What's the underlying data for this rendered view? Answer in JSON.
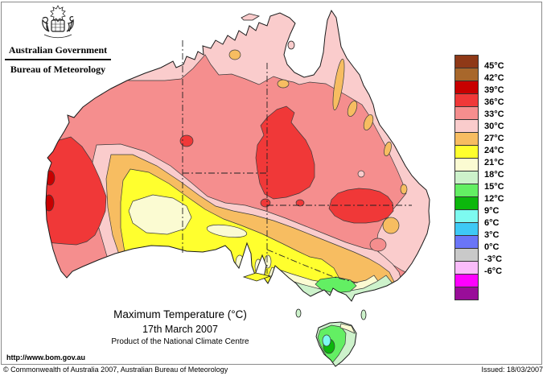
{
  "header": {
    "government": "Australian Government",
    "bureau": "Bureau of Meteorology"
  },
  "title_block": {
    "title": "Maximum Temperature (°C)",
    "date": "17th March 2007",
    "product": "Product of the National Climate Centre"
  },
  "url": "http://www.bom.gov.au",
  "footer": {
    "copyright": "© Commonwealth of Australia 2007, Australian Bureau of Meteorology",
    "issued": "Issued: 18/03/2007"
  },
  "palette": {
    "t45_up": "#8F3917",
    "t42_45": "#A8672B",
    "t39_42": "#C80000",
    "t36_39": "#F03838",
    "t33_36": "#F58E8E",
    "t30_33": "#FACCCC",
    "t27_30": "#F7BD61",
    "t24_27": "#FFFF2E",
    "t21_24": "#FBFBD2",
    "t18_21": "#CDF2CB",
    "t15_18": "#63EF63",
    "t12_15": "#0CB70C",
    "t9_12": "#7DFAF0",
    "t6_9": "#3EC9F5",
    "t3_6": "#6A75F7",
    "t0_3": "#C9C9C9",
    "tm3_0": "#FABCFA",
    "tm6_m3": "#FE00FE",
    "t_below_m6": "#990D99"
  },
  "legend": {
    "swatch_keys": [
      "t45_up",
      "t42_45",
      "t39_42",
      "t36_39",
      "t33_36",
      "t30_33",
      "t27_30",
      "t24_27",
      "t21_24",
      "t18_21",
      "t15_18",
      "t12_15",
      "t9_12",
      "t6_9",
      "t3_6",
      "t0_3",
      "tm3_0",
      "tm6_m3",
      "t_below_m6"
    ],
    "labels": [
      "45°C",
      "42°C",
      "39°C",
      "36°C",
      "33°C",
      "30°C",
      "27°C",
      "24°C",
      "21°C",
      "18°C",
      "15°C",
      "12°C",
      "9°C",
      "6°C",
      "3°C",
      "0°C",
      "-3°C",
      "-6°C"
    ]
  },
  "map": {
    "region": "Australia",
    "kind": "maximum temperature analysis",
    "bands_shown_on_mainland": [
      "39-42",
      "36-39",
      "33-36",
      "30-33",
      "27-30",
      "24-27",
      "21-24",
      "18-21",
      "15-18"
    ],
    "bands_shown_on_tasmania": [
      "21-24",
      "18-21",
      "15-18",
      "12-15",
      "9-12"
    ]
  }
}
